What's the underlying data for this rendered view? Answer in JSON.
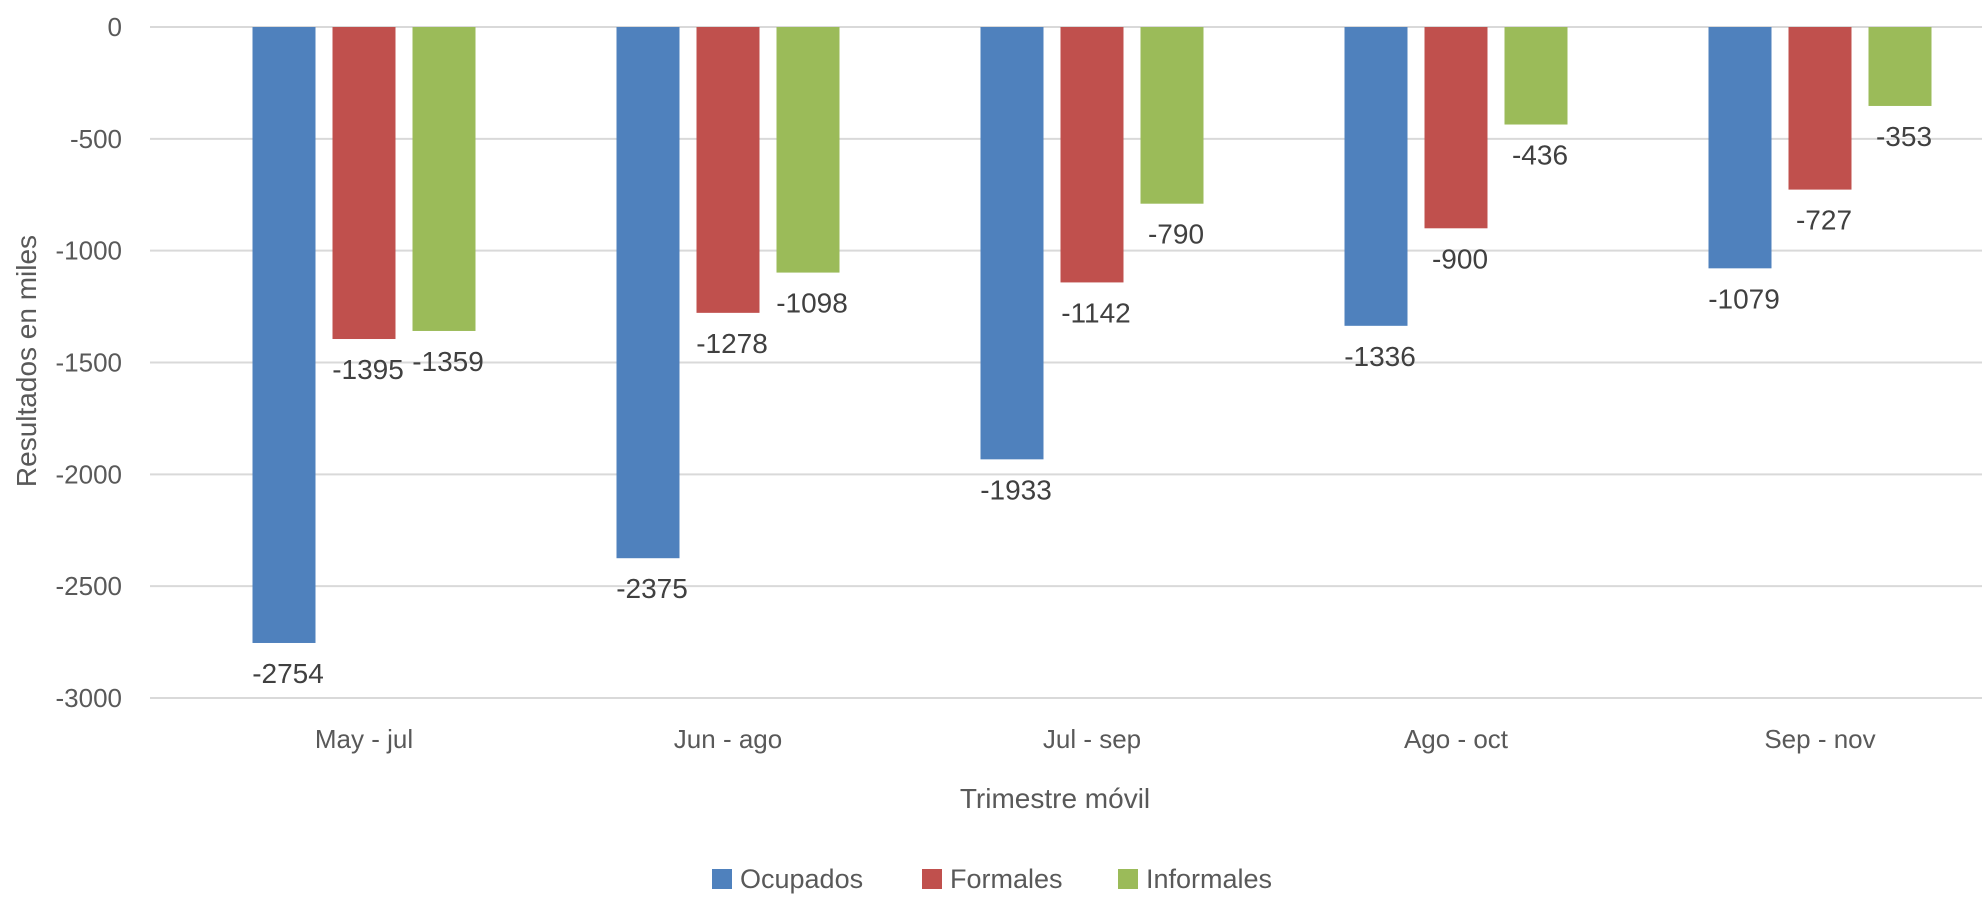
{
  "chart_data": {
    "type": "bar",
    "categories": [
      "May - jul",
      "Jun - ago",
      "Jul - sep",
      "Ago - oct",
      "Sep - nov"
    ],
    "series": [
      {
        "name": "Ocupados",
        "values": [
          -2754,
          -2375,
          -1933,
          -1336,
          -1079
        ],
        "color": "#4F81BD"
      },
      {
        "name": "Formales",
        "values": [
          -1395,
          -1278,
          -1142,
          -900,
          -727
        ],
        "color": "#C0504D"
      },
      {
        "name": "Informales",
        "values": [
          -1359,
          -1098,
          -790,
          -436,
          -353
        ],
        "color": "#9BBB59"
      }
    ],
    "xlabel": "Trimestre móvil",
    "ylabel": "Resultados en miles",
    "ylim": [
      -3000,
      0
    ],
    "yticks": [
      0,
      -500,
      -1000,
      -1500,
      -2000,
      -2500,
      -3000
    ],
    "grid": true,
    "legend_position": "bottom",
    "gridline_color": "#D9D9D9"
  }
}
